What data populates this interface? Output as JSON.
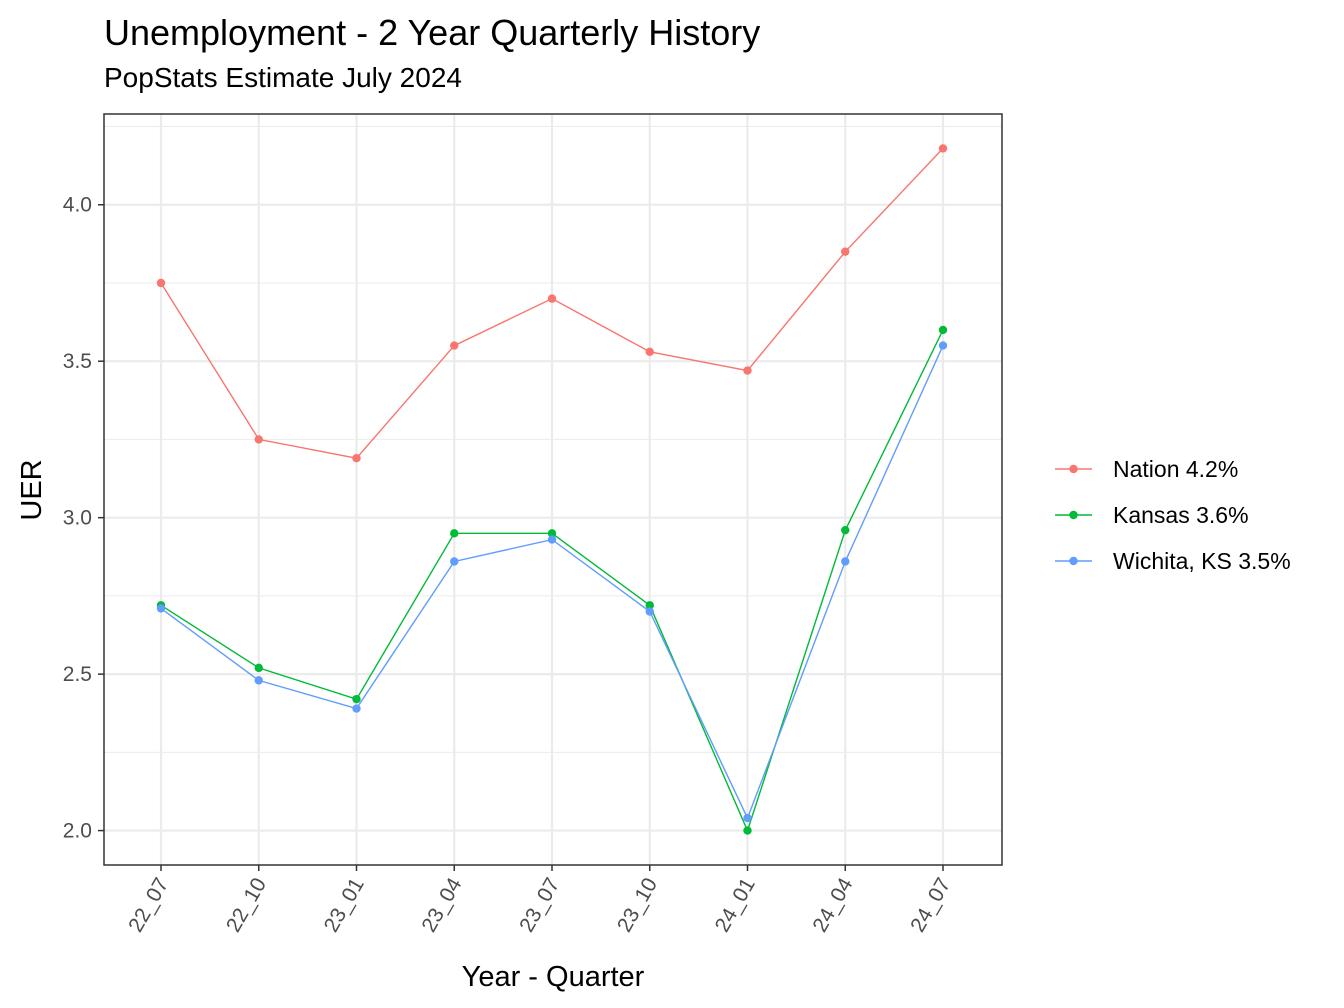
{
  "chart_data": {
    "type": "line",
    "title": "Unemployment - 2 Year Quarterly History",
    "subtitle": "PopStats Estimate July 2024",
    "xlabel": "Year - Quarter",
    "ylabel": "UER",
    "categories": [
      "22_07",
      "22_10",
      "23_01",
      "23_04",
      "23_07",
      "23_10",
      "24_01",
      "24_04",
      "24_07"
    ],
    "ylim": [
      1.89,
      4.29
    ],
    "yticks": [
      "2.0",
      "2.5",
      "3.0",
      "3.5",
      "4.0"
    ],
    "grid": true,
    "legend_position": "right",
    "series": [
      {
        "name": "Nation 4.2%",
        "color": "#F8766D",
        "values": [
          3.75,
          3.25,
          3.19,
          3.55,
          3.7,
          3.53,
          3.47,
          3.85,
          4.18
        ]
      },
      {
        "name": "Kansas 3.6%",
        "color": "#00BA38",
        "values": [
          2.72,
          2.52,
          2.42,
          2.95,
          2.95,
          2.72,
          2.0,
          2.96,
          3.6
        ]
      },
      {
        "name": "Wichita, KS 3.5%",
        "color": "#619CFF",
        "values": [
          2.71,
          2.48,
          2.39,
          2.86,
          2.93,
          2.7,
          2.04,
          2.86,
          3.55
        ]
      }
    ]
  }
}
